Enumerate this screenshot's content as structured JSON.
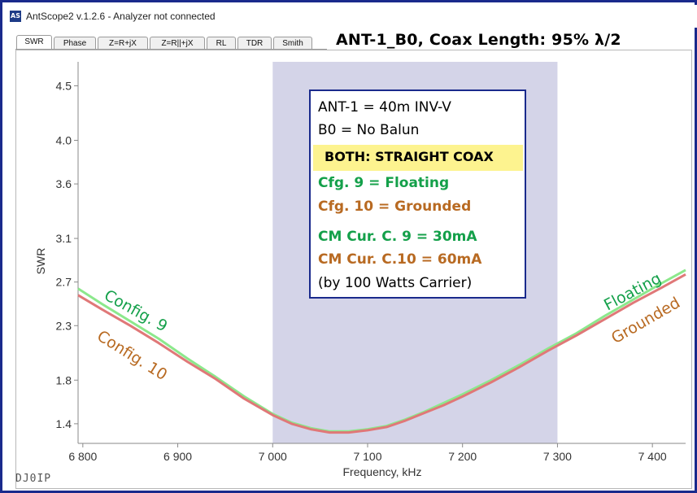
{
  "window": {
    "icon_text": "AS",
    "title": "AntScope2 v.1.2.6 - Analyzer not connected"
  },
  "tabs": [
    {
      "label": "SWR",
      "active": true
    },
    {
      "label": "Phase",
      "active": false
    },
    {
      "label": "Z=R+jX",
      "active": false
    },
    {
      "label": "Z=R||+jX",
      "active": false
    },
    {
      "label": "RL",
      "active": false
    },
    {
      "label": "TDR",
      "active": false
    },
    {
      "label": "Smith",
      "active": false
    }
  ],
  "heading": "ANT-1_B0,  Coax Length: 95% λ/2",
  "annotation_box": {
    "line1": "ANT-1 = 40m INV-V",
    "line2": "B0 = No Balun",
    "highlight": "BOTH: STRAIGHT COAX",
    "cfg9": "Cfg.   9 =  Floating",
    "cfg10": "Cfg. 10 =  Grounded",
    "cm9": "CM Cur.   C. 9 =  30mA",
    "cm10": "CM Cur.  C.10 =  60mA",
    "note": "(by 100 Watts Carrier)"
  },
  "curve_labels": {
    "config9": "Config. 9",
    "config10": "Config. 10",
    "floating": "Floating",
    "grounded": "Grounded"
  },
  "signature": "DJ0IP",
  "colors": {
    "config9": "#14a04a",
    "config10": "#b86a22",
    "highlight": "#fdf38f",
    "band": "#d4d4e8",
    "border": "#1a2a8c"
  },
  "chart_data": {
    "type": "line",
    "title": "",
    "xlabel": "Frequency, kHz",
    "ylabel": "SWR",
    "xlim": [
      6795,
      7435
    ],
    "ylim": [
      1.22,
      4.72
    ],
    "x_ticks": [
      6800,
      6900,
      7000,
      7100,
      7200,
      7300,
      7400
    ],
    "x_tick_labels": [
      "6 800",
      "6 900",
      "7 000",
      "7 100",
      "7 200",
      "7 300",
      "7 400"
    ],
    "y_ticks": [
      1.4,
      1.8,
      2.3,
      2.7,
      3.1,
      3.6,
      4.0,
      4.5
    ],
    "y_tick_labels": [
      "1.4",
      "1.8",
      "2.3",
      "2.7",
      "3.1",
      "3.6",
      "4.0",
      "4.5"
    ],
    "highlight_band": [
      7000,
      7300
    ],
    "grid": false,
    "series": [
      {
        "name": "Config. 9",
        "color": "#8ce88c",
        "x": [
          6795,
          6820,
          6850,
          6880,
          6910,
          6940,
          6970,
          7000,
          7020,
          7040,
          7060,
          7080,
          7100,
          7120,
          7140,
          7160,
          7180,
          7200,
          7230,
          7260,
          7290,
          7320,
          7350,
          7380,
          7410,
          7435
        ],
        "y": [
          2.64,
          2.5,
          2.34,
          2.18,
          2.0,
          1.83,
          1.65,
          1.49,
          1.41,
          1.36,
          1.33,
          1.33,
          1.35,
          1.38,
          1.44,
          1.51,
          1.59,
          1.67,
          1.8,
          1.94,
          2.09,
          2.23,
          2.39,
          2.54,
          2.69,
          2.81
        ]
      },
      {
        "name": "Config. 10",
        "color": "#e07878",
        "x": [
          6795,
          6820,
          6850,
          6880,
          6910,
          6940,
          6970,
          7000,
          7020,
          7040,
          7060,
          7080,
          7100,
          7120,
          7140,
          7160,
          7180,
          7200,
          7230,
          7260,
          7290,
          7320,
          7350,
          7380,
          7410,
          7435
        ],
        "y": [
          2.58,
          2.45,
          2.3,
          2.14,
          1.97,
          1.81,
          1.63,
          1.48,
          1.4,
          1.35,
          1.32,
          1.32,
          1.34,
          1.37,
          1.43,
          1.5,
          1.57,
          1.65,
          1.78,
          1.92,
          2.07,
          2.21,
          2.36,
          2.51,
          2.65,
          2.77
        ]
      }
    ]
  }
}
